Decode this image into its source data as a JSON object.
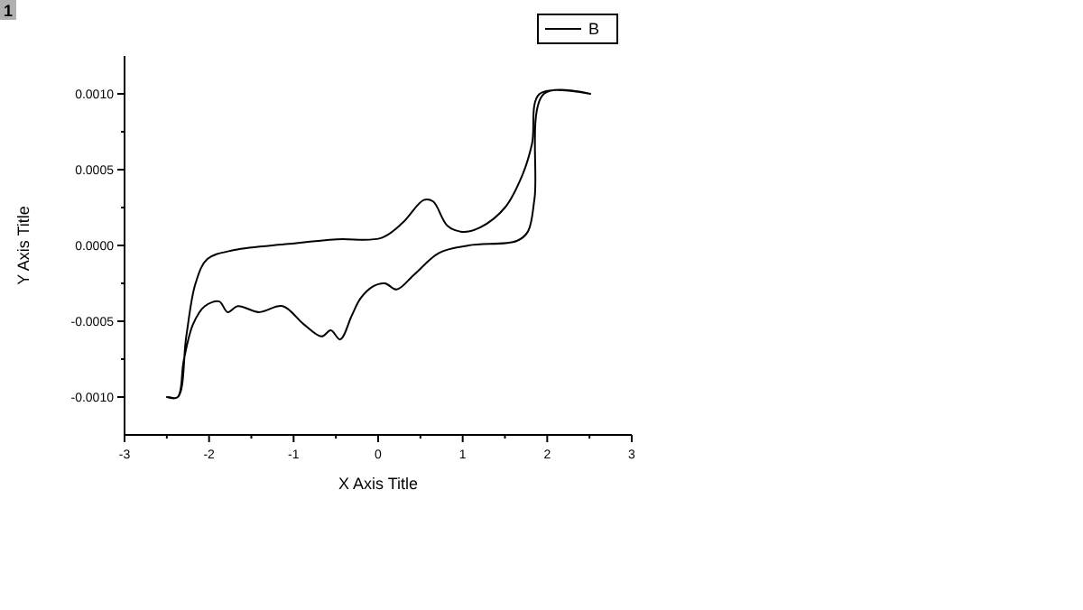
{
  "chart_data": {
    "type": "line",
    "xlabel": "X  Axis Title",
    "ylabel": "Y Axis Title",
    "annotations": [
      "1"
    ],
    "legend": "top right",
    "line_style": "solid",
    "xlim": [
      -3,
      3
    ],
    "ylim": [
      -0.00125,
      0.00125
    ],
    "xticks": [
      -3,
      {
        "value": -2.5,
        "label": null
      },
      -2,
      {
        "value": -1.5,
        "label": null
      },
      -1,
      {
        "value": -0.5,
        "label": null
      },
      0,
      {
        "value": 0.5,
        "label": null
      },
      1,
      {
        "value": 1.5,
        "label": null
      },
      2,
      {
        "value": 2.5,
        "label": null
      },
      3
    ],
    "yticks": [
      {
        "value": -0.001,
        "label": "-0.0010"
      },
      {
        "value": -0.00075,
        "label": null
      },
      {
        "value": -0.0005,
        "label": "-0.0005"
      },
      {
        "value": -0.00025,
        "label": null
      },
      {
        "value": 0,
        "label": "0.0000"
      },
      {
        "value": 0.00025,
        "label": null
      },
      {
        "value": 0.0005,
        "label": "0.0005"
      },
      {
        "value": 0.00075,
        "label": null
      },
      {
        "value": 0.001,
        "label": "0.0010"
      }
    ],
    "series": [
      {
        "name": "B",
        "color": "#000000",
        "x": [
          -2.5,
          -2.37,
          -2.27,
          -2.16,
          -2.02,
          -1.7,
          -1.06,
          -0.49,
          0.04,
          0.29,
          0.54,
          0.65,
          0.82,
          1.0,
          1.21,
          1.5,
          1.71,
          1.82,
          1.91,
          2.51,
          1.96,
          1.85,
          1.77,
          1.64,
          1.07,
          0.72,
          0.43,
          0.22,
          0.08,
          -0.06,
          -0.21,
          -0.31,
          -0.45,
          -0.56,
          -0.67,
          -0.88,
          -1.13,
          -1.41,
          -1.66,
          -1.78,
          -1.88,
          -2.05,
          -2.19,
          -2.3,
          -2.37,
          -2.48
        ],
        "values": [
          -0.001,
          -0.001,
          -0.0006,
          -0.00025,
          -9e-05,
          -3e-05,
          1e-05,
          4e-05,
          5e-05,
          0.00015,
          0.0003,
          0.00029,
          0.00013,
          9e-05,
          0.00012,
          0.00025,
          0.00047,
          0.00067,
          0.001,
          0.001,
          0.001,
          0.00031,
          9e-05,
          3e-05,
          0,
          -5e-05,
          -0.00019,
          -0.00029,
          -0.00025,
          -0.00027,
          -0.00035,
          -0.00046,
          -0.00062,
          -0.00056,
          -0.0006,
          -0.00052,
          -0.0004,
          -0.00044,
          -0.0004,
          -0.00044,
          -0.00037,
          -0.0004,
          -0.00052,
          -0.00076,
          -0.001,
          -0.001
        ]
      }
    ]
  }
}
